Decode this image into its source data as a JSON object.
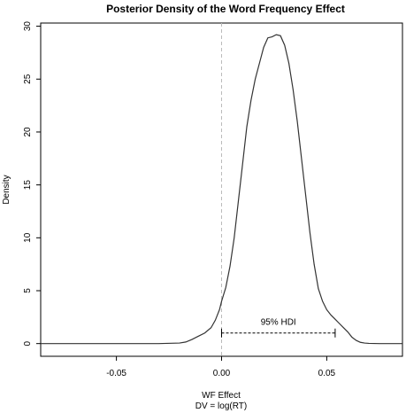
{
  "chart_data": {
    "type": "line",
    "title": "Posterior Density of the Word Frequency Effect",
    "xlabel": "WF Effect",
    "xlabel_line2": "DV = log(RT)",
    "ylabel": "Density",
    "xlim": [
      -0.086,
      0.086
    ],
    "ylim": [
      -1.2,
      30.3
    ],
    "x_ticks": [
      -0.05,
      0.0,
      0.05
    ],
    "x_tick_labels": [
      "-0.05",
      "0.00",
      "0.05"
    ],
    "y_ticks": [
      0,
      5,
      10,
      15,
      20,
      25,
      30
    ],
    "y_tick_labels": [
      "0",
      "5",
      "10",
      "15",
      "20",
      "25",
      "30"
    ],
    "reference_line": {
      "x": 0.0,
      "style": "dashed",
      "color": "#bbbbbb"
    },
    "hdi": {
      "label": "95% HDI",
      "lower": 0.0,
      "upper": 0.054,
      "y": 1.0
    },
    "series": [
      {
        "x": [
          -0.086,
          -0.06,
          -0.04,
          -0.03,
          -0.02,
          -0.017,
          -0.014,
          -0.011,
          -0.008,
          -0.005,
          -0.003,
          -0.001,
          0.0,
          0.002,
          0.004,
          0.006,
          0.008,
          0.01,
          0.012,
          0.014,
          0.016,
          0.018,
          0.02,
          0.022,
          0.024,
          0.026,
          0.028,
          0.03,
          0.032,
          0.034,
          0.036,
          0.038,
          0.04,
          0.042,
          0.044,
          0.046,
          0.048,
          0.05,
          0.052,
          0.054,
          0.056,
          0.058,
          0.06,
          0.062,
          0.064,
          0.066,
          0.068,
          0.07,
          0.075,
          0.08,
          0.086
        ],
        "y": [
          0.0,
          0.0,
          0.0,
          0.0,
          0.05,
          0.15,
          0.4,
          0.7,
          1.0,
          1.5,
          2.2,
          3.2,
          4.0,
          5.3,
          7.3,
          10.0,
          13.5,
          17.0,
          20.5,
          23.0,
          25.0,
          26.5,
          28.0,
          28.9,
          29.0,
          29.2,
          29.1,
          28.2,
          26.5,
          24.0,
          21.0,
          17.5,
          14.0,
          10.5,
          7.5,
          5.2,
          4.0,
          3.2,
          2.7,
          2.3,
          1.9,
          1.5,
          1.1,
          0.6,
          0.3,
          0.12,
          0.05,
          0.02,
          0.0,
          0.0,
          0.0
        ]
      }
    ]
  }
}
